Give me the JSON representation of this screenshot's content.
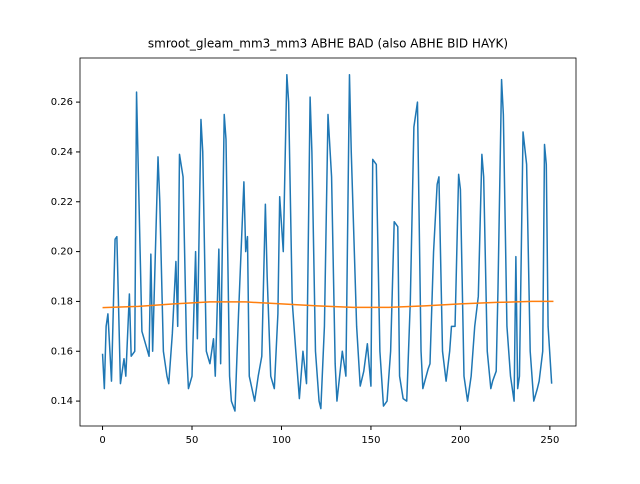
{
  "chart_data": {
    "type": "line",
    "title": "smroot_gleam_mm3_mm3 ABHE BAD (also ABHE BID HAYK)",
    "xlim": [
      -12.6,
      264.6
    ],
    "xticks": [
      0,
      50,
      100,
      150,
      200,
      250
    ],
    "ylim": [
      0.13,
      0.2777
    ],
    "yticks": [
      0.14,
      0.16,
      0.18,
      {
        "value": 0.2,
        "label": "0.20"
      },
      0.22,
      0.24,
      0.26
    ],
    "series": [
      {
        "color": "#1f77b4",
        "x": [
          0,
          1,
          2,
          3,
          5,
          7,
          8,
          10,
          12,
          13,
          15,
          16,
          18,
          19,
          21,
          22,
          24,
          26,
          27,
          28,
          31,
          32,
          34,
          36,
          37,
          39,
          41,
          42,
          43,
          45,
          47,
          48,
          50,
          52,
          53,
          55,
          56,
          58,
          60,
          62,
          63,
          65,
          66,
          68,
          69,
          71,
          72,
          74,
          76,
          79,
          80,
          81,
          82,
          85,
          87,
          89,
          91,
          92,
          94,
          96,
          98,
          99,
          101,
          103,
          104,
          106,
          108,
          110,
          112,
          114,
          116,
          117,
          119,
          121,
          122,
          124,
          126,
          128,
          130,
          131,
          134,
          136,
          138,
          139,
          142,
          144,
          146,
          148,
          150,
          151,
          153,
          155,
          157,
          159,
          161,
          163,
          165,
          166,
          168,
          170,
          172,
          174,
          176,
          178,
          179,
          182,
          183,
          185,
          187,
          188,
          190,
          192,
          194,
          195,
          197,
          199,
          200,
          202,
          204,
          206,
          208,
          210,
          212,
          213,
          215,
          217,
          218,
          220,
          221,
          223,
          224,
          226,
          228,
          230,
          231,
          232,
          233,
          235,
          237,
          239,
          241,
          243,
          244,
          246,
          247,
          248,
          249,
          251
        ],
        "values": [
          0.159,
          0.145,
          0.17,
          0.175,
          0.148,
          0.205,
          0.206,
          0.147,
          0.157,
          0.15,
          0.183,
          0.158,
          0.16,
          0.264,
          0.2,
          0.168,
          0.163,
          0.158,
          0.199,
          0.16,
          0.238,
          0.22,
          0.16,
          0.15,
          0.147,
          0.167,
          0.196,
          0.17,
          0.239,
          0.23,
          0.16,
          0.145,
          0.15,
          0.2,
          0.165,
          0.253,
          0.24,
          0.16,
          0.155,
          0.165,
          0.15,
          0.201,
          0.155,
          0.255,
          0.245,
          0.15,
          0.14,
          0.136,
          0.175,
          0.228,
          0.2,
          0.206,
          0.15,
          0.14,
          0.15,
          0.158,
          0.219,
          0.19,
          0.15,
          0.145,
          0.175,
          0.222,
          0.2,
          0.271,
          0.26,
          0.18,
          0.16,
          0.141,
          0.16,
          0.147,
          0.262,
          0.24,
          0.16,
          0.14,
          0.137,
          0.17,
          0.255,
          0.23,
          0.155,
          0.14,
          0.16,
          0.15,
          0.271,
          0.24,
          0.17,
          0.146,
          0.152,
          0.163,
          0.146,
          0.237,
          0.235,
          0.16,
          0.138,
          0.14,
          0.16,
          0.212,
          0.21,
          0.15,
          0.141,
          0.14,
          0.18,
          0.25,
          0.26,
          0.16,
          0.145,
          0.153,
          0.155,
          0.2,
          0.227,
          0.23,
          0.16,
          0.148,
          0.16,
          0.17,
          0.17,
          0.231,
          0.225,
          0.15,
          0.14,
          0.15,
          0.17,
          0.182,
          0.239,
          0.23,
          0.16,
          0.145,
          0.148,
          0.152,
          0.185,
          0.269,
          0.255,
          0.17,
          0.15,
          0.14,
          0.198,
          0.145,
          0.15,
          0.248,
          0.235,
          0.16,
          0.14,
          0.145,
          0.148,
          0.16,
          0.243,
          0.235,
          0.17,
          0.147
        ]
      },
      {
        "color": "#ff7f0e",
        "x": [
          0,
          20,
          40,
          60,
          80,
          100,
          120,
          140,
          160,
          180,
          200,
          220,
          240,
          252
        ],
        "values": [
          0.1775,
          0.178,
          0.179,
          0.1798,
          0.1798,
          0.179,
          0.1782,
          0.1776,
          0.1776,
          0.1782,
          0.179,
          0.1796,
          0.18,
          0.18
        ]
      }
    ]
  }
}
